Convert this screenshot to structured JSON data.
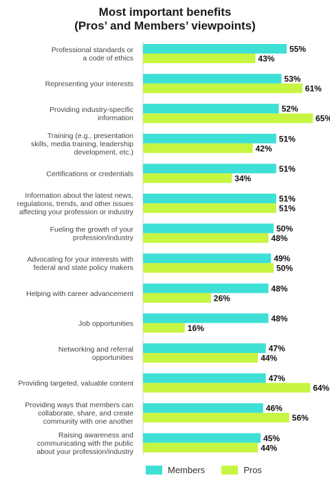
{
  "chart_data": {
    "type": "bar",
    "orientation": "horizontal",
    "title": "Most important benefits",
    "subtitle": "(Pros’ and Members’ viewpoints)",
    "categories": [
      [
        "Professional standards or",
        "a code of ethics"
      ],
      [
        "Representing your interests"
      ],
      [
        "Providing industry-specific",
        "information"
      ],
      [
        "Training (e.g., presentation",
        "skills, media training, leadership",
        "development, etc.)"
      ],
      [
        "Certifications or credentials"
      ],
      [
        "Information about the latest news,",
        "regulations, trends, and other issues",
        "affecting your profession or industry"
      ],
      [
        "Fueling the growth of your",
        "profession/industry"
      ],
      [
        "Advocating for your interests with",
        "federal and state policy makers"
      ],
      [
        "Helping with career advancement"
      ],
      [
        "Job opportunities"
      ],
      [
        "Networking and referral",
        "opportunities"
      ],
      [
        "Providing targeted, valuable content"
      ],
      [
        "Providing ways that members can",
        "collaborate, share, and create",
        "community with one another"
      ],
      [
        "Raising awareness and",
        "communicating with the public",
        "about your profession/industry"
      ]
    ],
    "series": [
      {
        "name": "Members",
        "color": "#3ee0d6",
        "values": [
          55,
          53,
          52,
          51,
          51,
          51,
          50,
          49,
          48,
          48,
          47,
          47,
          46,
          45
        ]
      },
      {
        "name": "Pros",
        "color": "#c6f542",
        "values": [
          43,
          61,
          65,
          42,
          34,
          51,
          48,
          50,
          26,
          16,
          44,
          64,
          56,
          44
        ]
      }
    ],
    "value_suffix": "%",
    "grid": false,
    "legend_position": "bottom"
  }
}
